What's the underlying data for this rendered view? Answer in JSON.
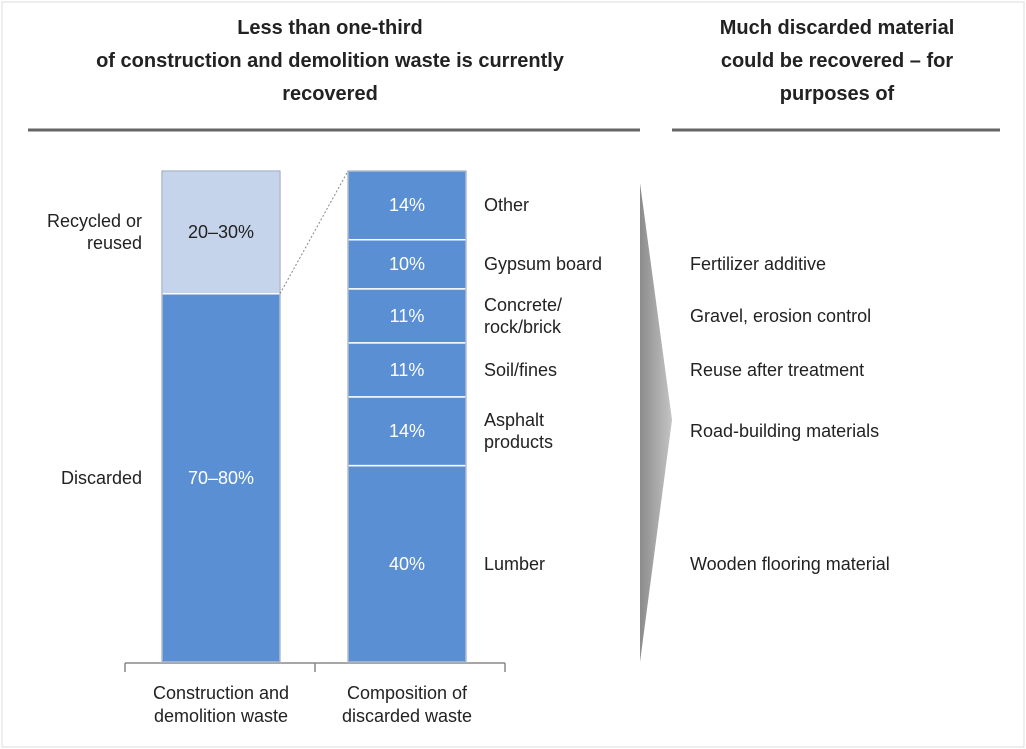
{
  "chart_data": {
    "type": "stacked_bar",
    "headings": [
      "Less than one-third\nof construction and demolition waste is currently\nrecovered",
      "Much discarded material\ncould be recovered – for\npurposes of"
    ],
    "ylim": [
      0,
      100
    ],
    "bars": [
      {
        "category": "Construction and\ndemolition waste",
        "names": [
          "Discarded",
          "Recycled or\nreused"
        ],
        "values": [
          75,
          25
        ],
        "value_labels": [
          "70–80%",
          "20–30%"
        ],
        "colors": [
          "#5b8fd3",
          "#c6d4eb"
        ]
      },
      {
        "category": "Composition of\ndiscarded waste",
        "names": [
          "Lumber",
          "Asphalt\nproducts",
          "Soil/fines",
          "Concrete/\nrock/brick",
          "Gypsum board",
          "Other"
        ],
        "values": [
          40,
          14,
          11,
          11,
          10,
          14
        ],
        "value_labels": [
          "40%",
          "14%",
          "11%",
          "11%",
          "10%",
          "14%"
        ],
        "colors": [
          "#5b8fd3",
          "#5b8fd3",
          "#5b8fd3",
          "#5b8fd3",
          "#5b8fd3",
          "#5b8fd3"
        ],
        "uses": [
          "Wooden flooring material",
          "Road-building materials",
          "Reuse after treatment",
          "Gravel, erosion control",
          "Fertilizer additive",
          null
        ]
      }
    ]
  }
}
